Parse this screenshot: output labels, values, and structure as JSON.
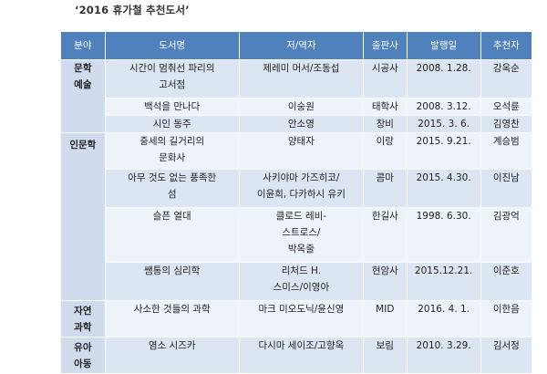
{
  "title": "‘2016 휴가철 추천도서’",
  "headers": {
    "category": "분야",
    "book": "도서명",
    "author": "저/역자",
    "publisher": "출판사",
    "date": "발행일",
    "recommender": "추천자"
  },
  "categories": {
    "literature": "문학\n예술",
    "humanities": "인문학",
    "science": "자연\n과학",
    "children": "유아\n아동"
  },
  "rows": [
    {
      "book": "시간이 멈춰선 파리의\n고서점",
      "author": "제레미 머서/조동섭",
      "publisher": "시공사",
      "date": "2008. 1.28.",
      "recommender": "강옥순"
    },
    {
      "book": "백석을 만나다",
      "author": "이숭원",
      "publisher": "태학사",
      "date": "2008. 3.12.",
      "recommender": "오석륜"
    },
    {
      "book": "시인 동주",
      "author": "안소영",
      "publisher": "창비",
      "date": "2015. 3. 6.",
      "recommender": "김영찬"
    },
    {
      "book": "중세의 길거리의\n문화사",
      "author": "양태자",
      "publisher": "이랑",
      "date": "2015. 9.21.",
      "recommender": "계승범"
    },
    {
      "book": "아무 것도 없는 풍족한\n섬",
      "author": "사키야마 가즈히코/\n이윤희, 다카하시 유키",
      "publisher": "콤마",
      "date": "2015. 4.30.",
      "recommender": "이진남"
    },
    {
      "book": "슬픈 열대",
      "author": "클로드 레비-\n스트로스/\n박옥줄",
      "publisher": "한길사",
      "date": "1998. 6.30.",
      "recommender": "김광억"
    },
    {
      "book": "쌤통의 심리학",
      "author": "리처드 H.\n스미스/이영아",
      "publisher": "현암사",
      "date": "2015.12.21.",
      "recommender": "이준호"
    },
    {
      "book": "사소한 것들의 과학",
      "author": "마크 미오도닉/윤신영",
      "publisher": "MID",
      "date": "2016. 4. 1.",
      "recommender": "이한음"
    },
    {
      "book": "염소 시즈카",
      "author": "다시마 세이조/고향옥",
      "publisher": "보림",
      "date": "2010. 3.29.",
      "recommender": "김서정"
    }
  ]
}
